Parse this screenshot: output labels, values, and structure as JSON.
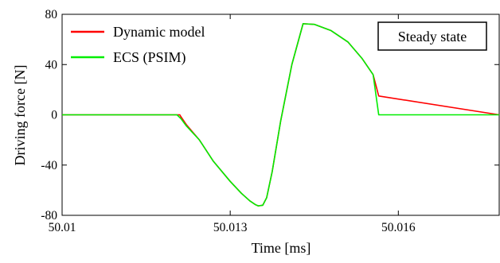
{
  "chart_data": {
    "type": "line",
    "xlabel": "Time [ms]",
    "ylabel": "Driving force [N]",
    "xlim": [
      50.01,
      50.0178
    ],
    "ylim": [
      -80,
      80
    ],
    "x_ticks": [
      50.01,
      50.013,
      50.016
    ],
    "x_tick_labels": [
      "50.01",
      "50.013",
      "50.016"
    ],
    "y_ticks": [
      80,
      40,
      0,
      -40,
      -80
    ],
    "y_tick_labels": [
      "80",
      "40",
      "0",
      "-40",
      "-80"
    ],
    "grid": false,
    "legend_position": "top-left",
    "annotation": "Steady state",
    "series": [
      {
        "name": "Dynamic model",
        "color": "#ff0000",
        "x": [
          50.01,
          50.0121,
          50.01212,
          50.01222,
          50.01245,
          50.0127,
          50.013,
          50.0132,
          50.01335,
          50.01345,
          50.0135,
          50.01358,
          50.01365,
          50.01375,
          50.0139,
          50.0141,
          50.0143,
          50.0145,
          50.0148,
          50.0151,
          50.01535,
          50.01555,
          50.01565,
          50.0178
        ],
        "y": [
          0,
          0,
          -1.5,
          -8,
          -20,
          -37,
          -53,
          -62.5,
          -68.5,
          -71.5,
          -72.5,
          -72,
          -66,
          -45,
          -5,
          40,
          72.5,
          72,
          67,
          58,
          45,
          32,
          15,
          0
        ]
      },
      {
        "name": "ECS (PSIM)",
        "color": "#00ee00",
        "x": [
          50.01,
          50.01205,
          50.01212,
          50.01222,
          50.01245,
          50.0127,
          50.013,
          50.0132,
          50.01335,
          50.01345,
          50.0135,
          50.01358,
          50.01365,
          50.01375,
          50.0139,
          50.0141,
          50.0143,
          50.0145,
          50.0148,
          50.0151,
          50.01535,
          50.01555,
          50.01565,
          50.0178
        ],
        "y": [
          0,
          0,
          -3,
          -9,
          -20,
          -37,
          -53,
          -62.5,
          -68.5,
          -71.5,
          -72.5,
          -72,
          -66,
          -45,
          -5,
          40,
          72.5,
          72,
          67,
          58,
          45,
          32,
          0,
          0
        ]
      }
    ]
  }
}
